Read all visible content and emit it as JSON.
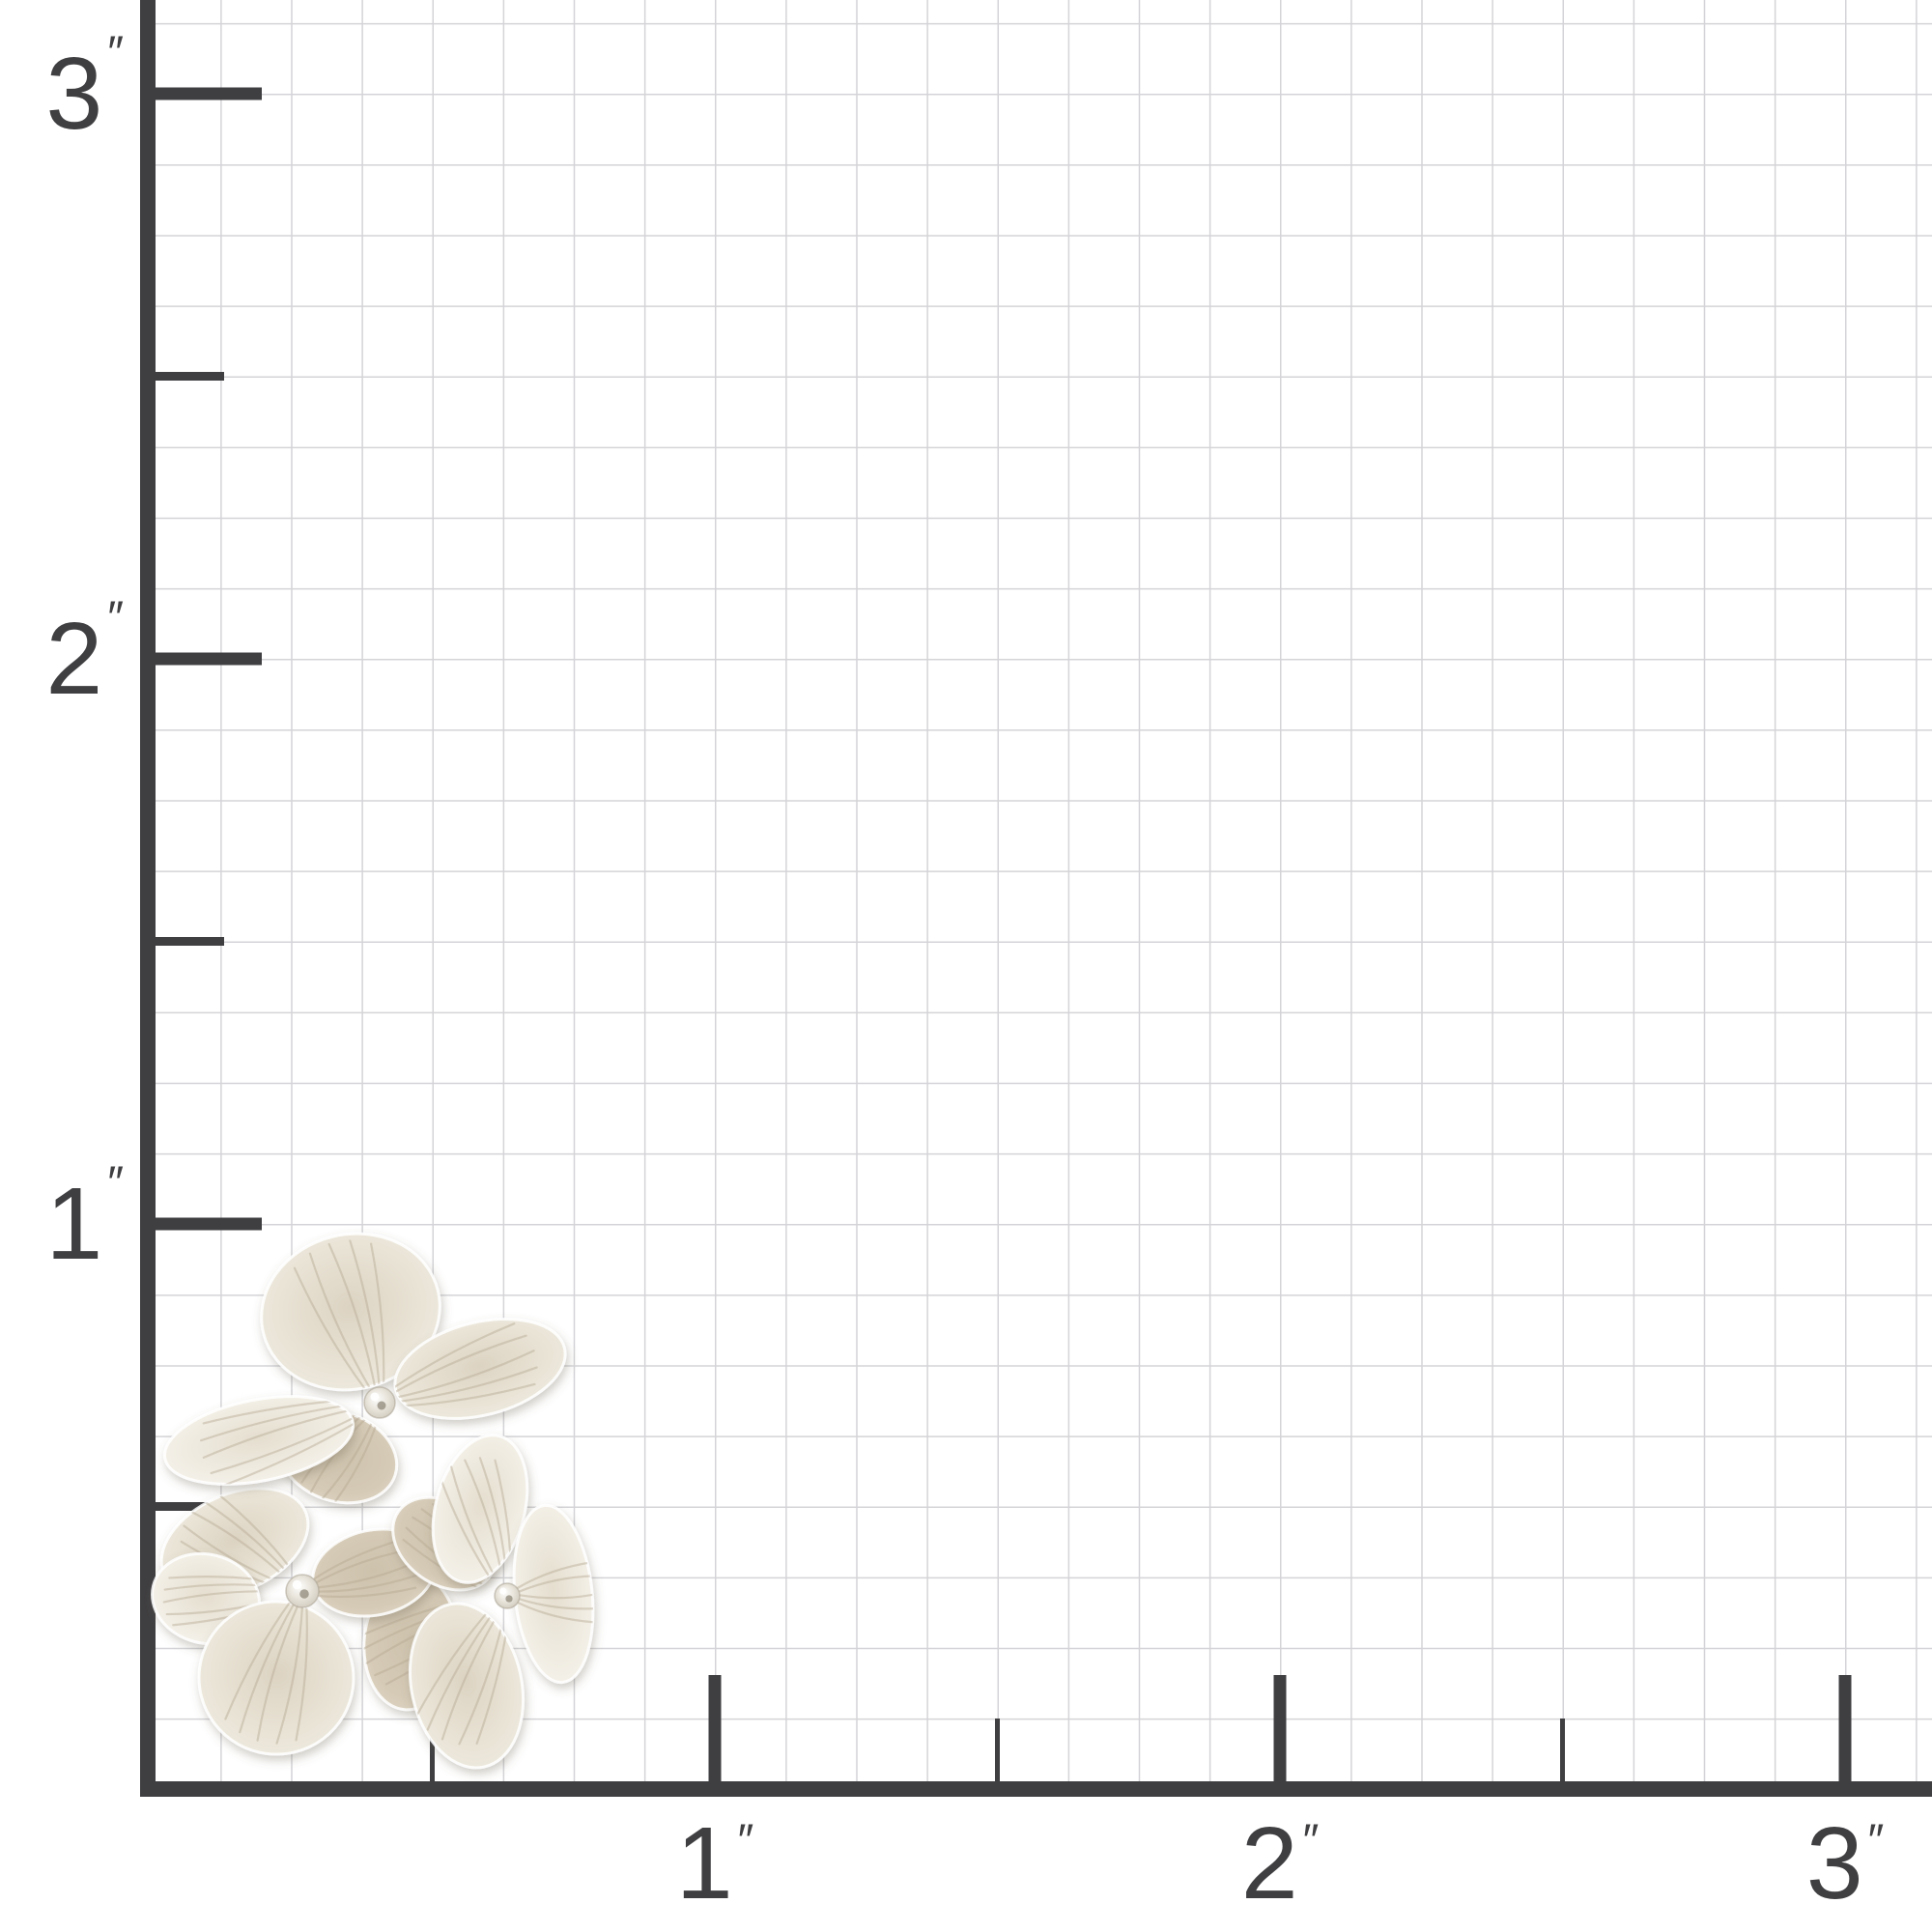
{
  "ruler": {
    "unit_symbol": "″",
    "y_axis_labels": [
      {
        "value": "3",
        "unit": "″"
      },
      {
        "value": "2",
        "unit": "″"
      },
      {
        "value": "1",
        "unit": "″"
      }
    ],
    "x_axis_labels": [
      {
        "value": "1",
        "unit": "″"
      },
      {
        "value": "2",
        "unit": "″"
      },
      {
        "value": "3",
        "unit": "″"
      }
    ]
  },
  "figure": {
    "icon": "hydrangea-flower-cluster",
    "flower_heads": 3,
    "petals_per_flower": 4
  },
  "colors": {
    "background": "#ffffff",
    "axis": "#3f3e41",
    "grid": "#d4d4d8",
    "petal_light": "#f5f2ea",
    "petal_mid": "#e8e2d4",
    "petal_dark": "#d5cab6",
    "petal_vein": "#b5a993",
    "petal_rim": "#ffffff",
    "flower_center": "#e9e5dc"
  }
}
